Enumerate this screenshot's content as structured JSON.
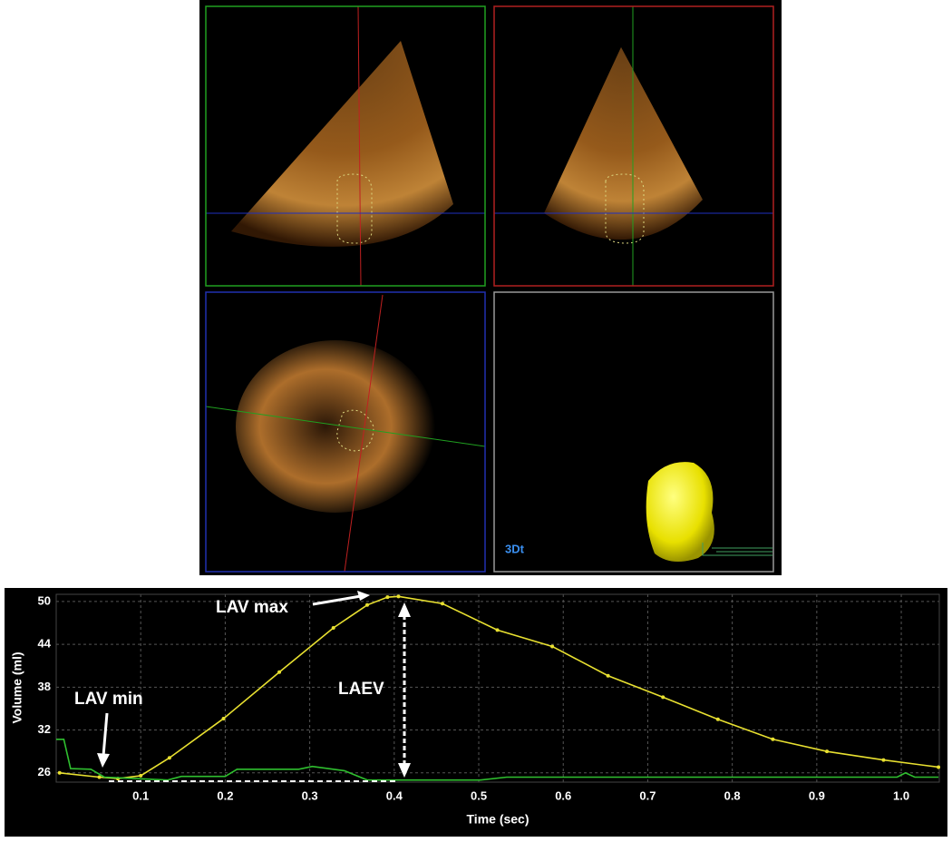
{
  "panel_label": "3Dt",
  "chart_data": {
    "type": "line",
    "xlabel": "Time (sec)",
    "ylabel": "Volume (ml)",
    "xlim": [
      0,
      1.045
    ],
    "ylim": [
      24.7,
      51
    ],
    "xticks": [
      0.1,
      0.2,
      0.3,
      0.4,
      0.5,
      0.6,
      0.7,
      0.8,
      0.9,
      {
        "value": 1,
        "label": "1.0"
      }
    ],
    "yticks": [
      26,
      32,
      38,
      44,
      50
    ],
    "grid": true,
    "annotations": [
      "LAV max",
      "LAV min",
      "LAEV"
    ],
    "series": [
      {
        "color": "#e8e030",
        "x": [
          0.004,
          0.051,
          0.073,
          0.1,
          0.134,
          0.198,
          0.264,
          0.328,
          0.368,
          0.392,
          0.405,
          0.457,
          0.522,
          0.587,
          0.653,
          0.718,
          0.783,
          0.848,
          0.912,
          0.979,
          1.044
        ],
        "values": [
          26.0,
          25.4,
          25.2,
          25.6,
          28.1,
          33.6,
          40.1,
          46.3,
          49.5,
          50.6,
          50.7,
          49.7,
          46.0,
          43.7,
          39.6,
          36.6,
          33.5,
          30.7,
          29.0,
          27.8,
          26.8
        ]
      },
      {
        "color": "#2fbf2f",
        "x": [
          0,
          0.009,
          0.017,
          0.041,
          0.057,
          0.132,
          0.148,
          0.2,
          0.214,
          0.287,
          0.303,
          0.341,
          0.368,
          0.502,
          0.533,
          0.995,
          1.005,
          1.016,
          1.044
        ],
        "values": [
          30.7,
          30.7,
          26.6,
          26.5,
          25.4,
          25.0,
          25.5,
          25.5,
          26.5,
          26.5,
          26.9,
          26.3,
          25.0,
          25.0,
          25.4,
          25.4,
          26.0,
          25.4,
          25.4
        ]
      }
    ]
  }
}
